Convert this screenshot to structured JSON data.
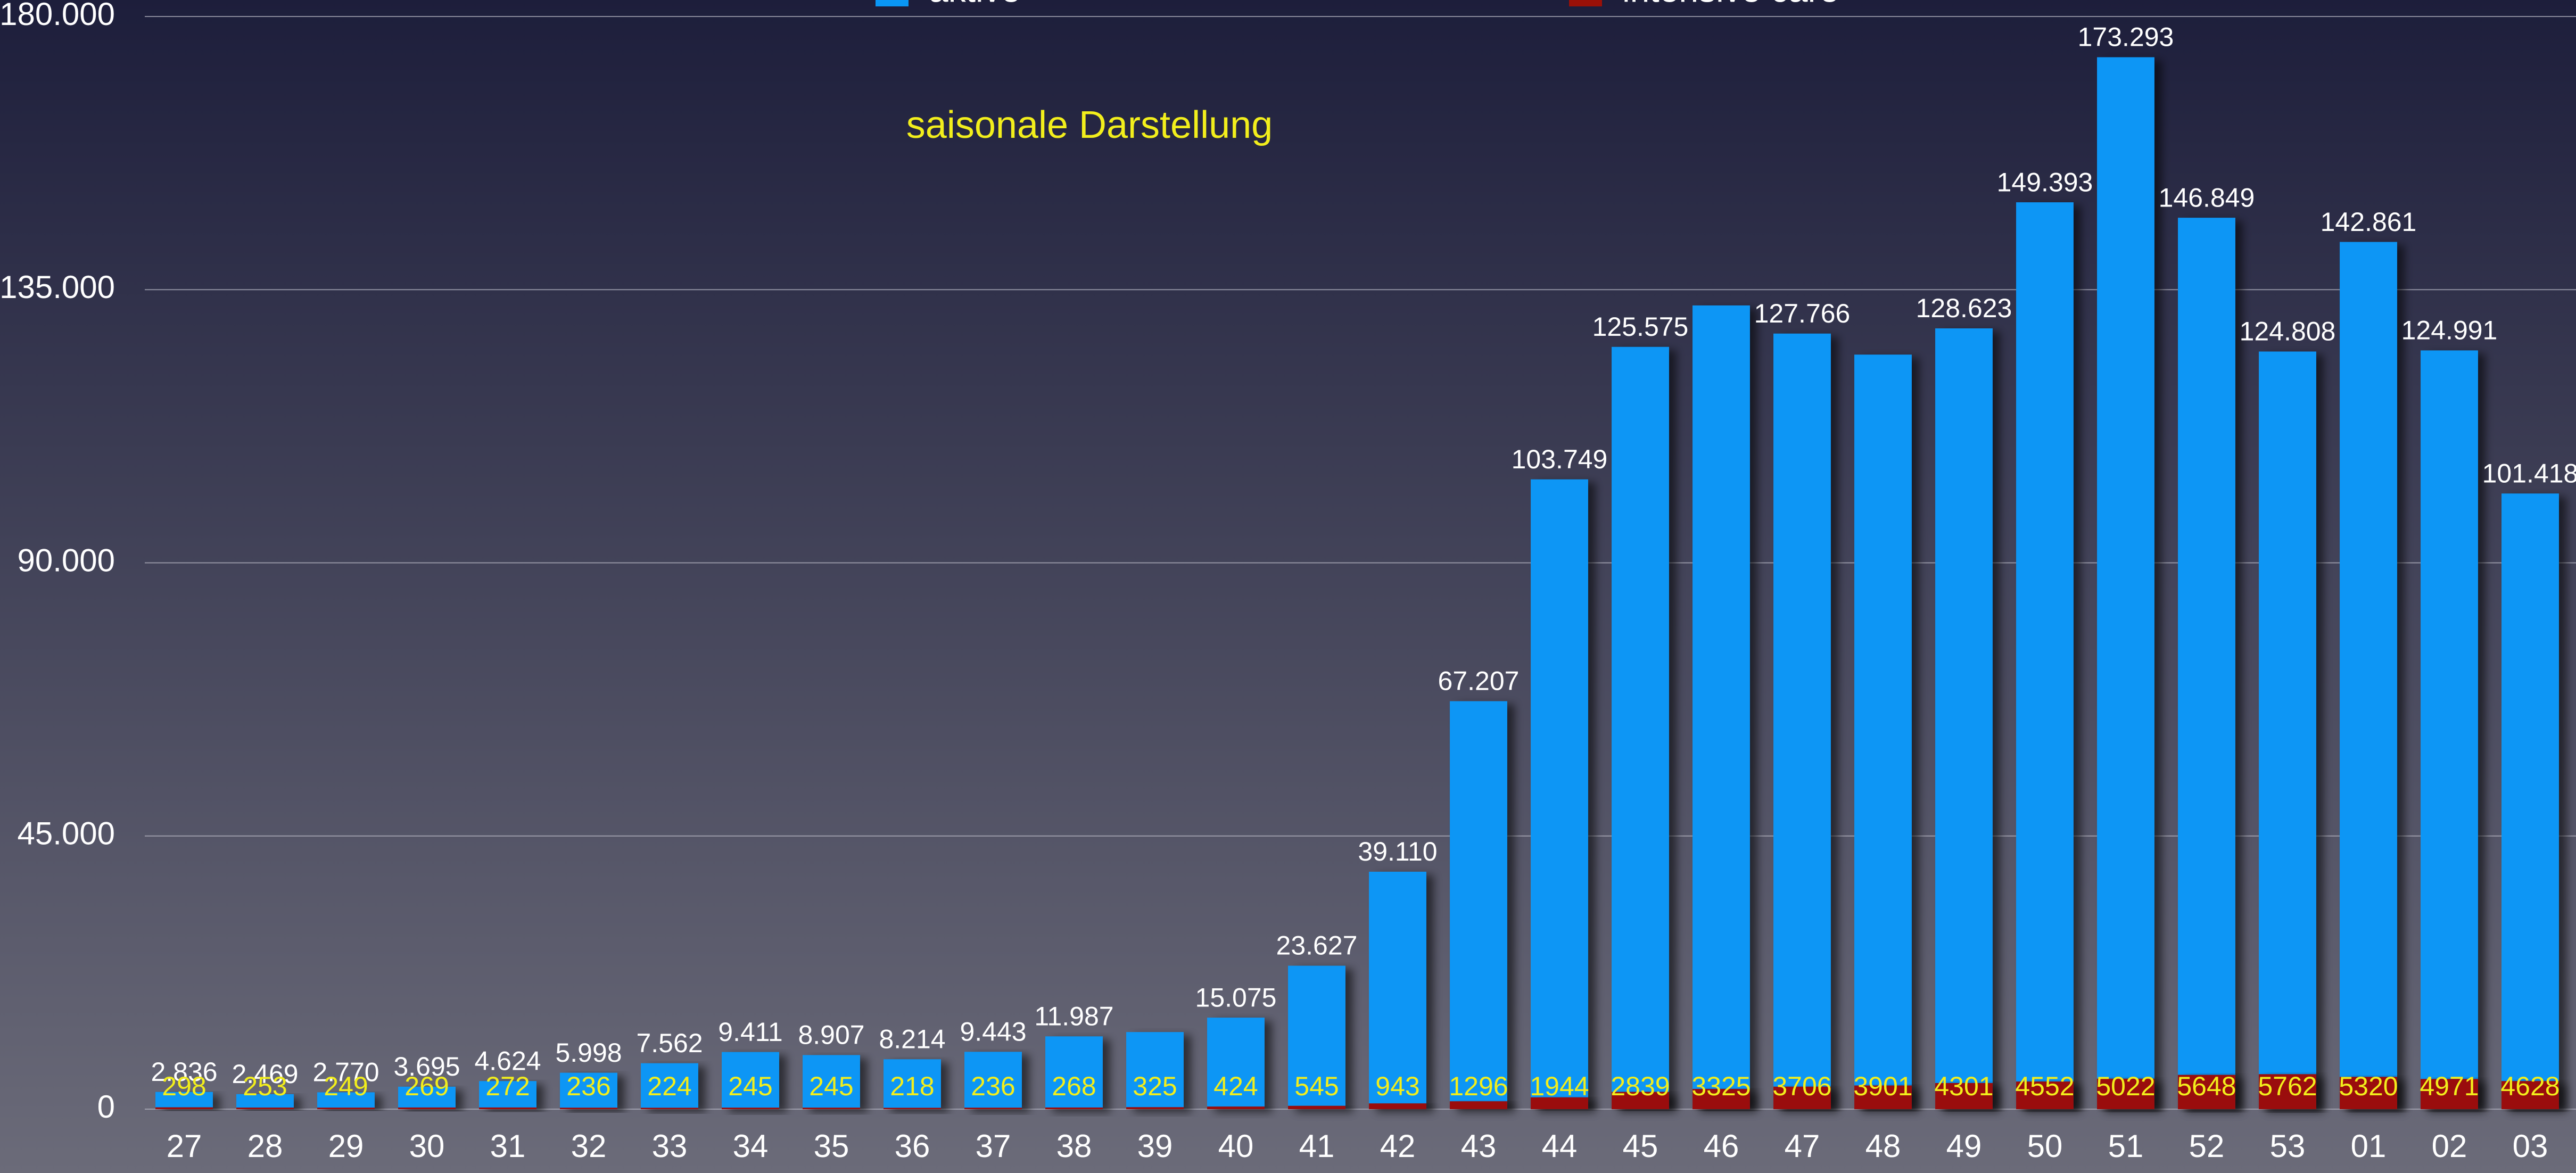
{
  "chart_data": {
    "type": "bar",
    "annotation": "saisonale Darstellung",
    "categories": [
      "27",
      "28",
      "29",
      "30",
      "31",
      "32",
      "33",
      "34",
      "35",
      "36",
      "37",
      "38",
      "39",
      "40",
      "41",
      "42",
      "43",
      "44",
      "45",
      "46",
      "47",
      "48",
      "49",
      "50",
      "51",
      "52",
      "53",
      "01",
      "02",
      "03"
    ],
    "series": [
      {
        "name": "aktive",
        "color": "#0a96f5",
        "values": [
          2836,
          2469,
          2770,
          3695,
          4624,
          5998,
          7562,
          9411,
          8907,
          8214,
          9443,
          11987,
          12700,
          15075,
          23627,
          39110,
          67207,
          103749,
          125575,
          132400,
          127766,
          124300,
          128623,
          149393,
          173293,
          146849,
          124808,
          142861,
          124991,
          101418
        ],
        "value_labels": [
          "2.836",
          "2.469",
          "2.770",
          "3.695",
          "4.624",
          "5.998",
          "7.562",
          "9.411",
          "8.907",
          "8.214",
          "9.443",
          "11.987",
          null,
          "15.075",
          "23.627",
          "39.110",
          "67.207",
          "103.749",
          "125.575",
          null,
          "127.766",
          null,
          "128.623",
          "149.393",
          "173.293",
          "146.849",
          "124.808",
          "142.861",
          "124.991",
          "101.418"
        ]
      },
      {
        "name": "intensive care",
        "color": "#9a1008",
        "values": [
          298,
          253,
          249,
          269,
          272,
          236,
          224,
          245,
          245,
          218,
          236,
          268,
          325,
          424,
          545,
          943,
          1296,
          1944,
          2839,
          3325,
          3706,
          3901,
          4301,
          4552,
          5022,
          5648,
          5762,
          5320,
          4971,
          4628
        ]
      }
    ],
    "ylim": [
      0,
      180000
    ],
    "yticks": [
      0,
      {
        "value": 45000,
        "label": "45.000"
      },
      {
        "value": 90000,
        "label": "90.000"
      },
      {
        "value": 135000,
        "label": "135.000"
      },
      {
        "value": 180000,
        "label": "180.000"
      }
    ],
    "grid": true
  }
}
